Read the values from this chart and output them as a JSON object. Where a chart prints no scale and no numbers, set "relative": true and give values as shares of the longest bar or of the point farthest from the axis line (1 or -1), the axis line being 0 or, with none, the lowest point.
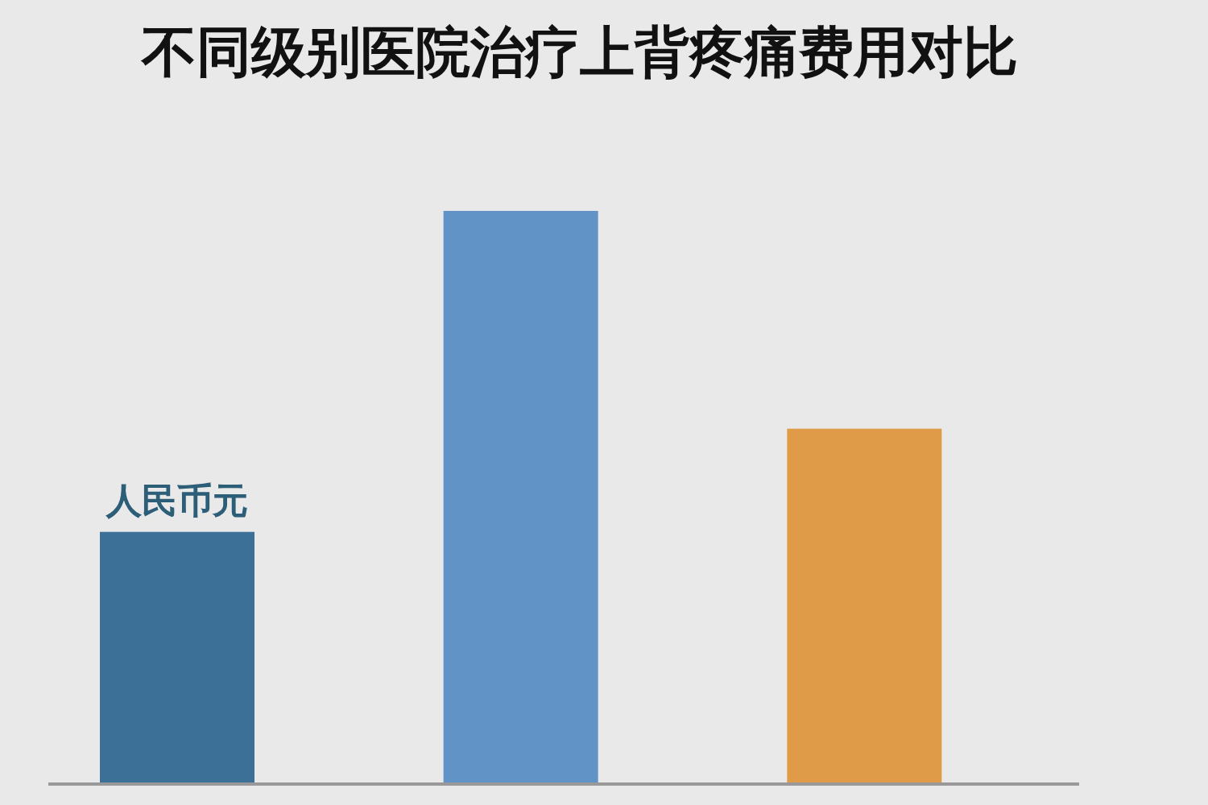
{
  "chart_data": {
    "type": "bar",
    "title": "不同级别医院治疗上背疼痛费用对比",
    "categories": [
      null,
      null,
      null
    ],
    "values": [
      0.44,
      1,
      0.62
    ],
    "colors": [
      "#3d7096",
      "#6193c7",
      "#e09b48"
    ],
    "relative": true,
    "annotations": [
      "人民币元"
    ]
  }
}
